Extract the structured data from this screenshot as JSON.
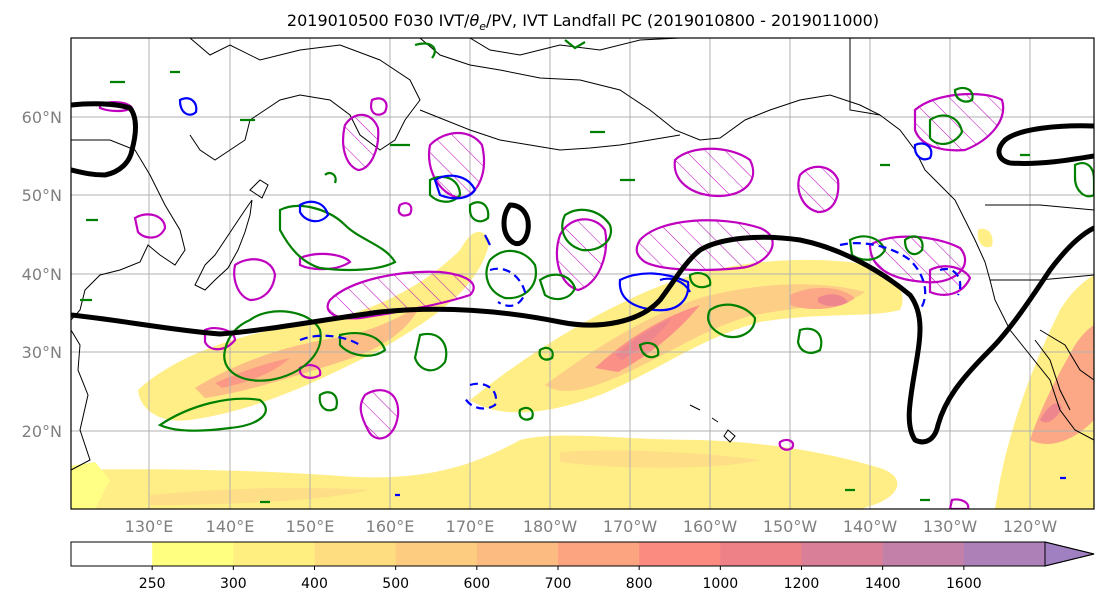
{
  "title": {
    "run": "2019010500 F030 IVT/",
    "theta": "θ",
    "theta_sub": "e",
    "rest": "/PV, IVT Landfall PC (2019010800 - 2019011000)"
  },
  "map": {
    "lat_labels": [
      "60°N",
      "50°N",
      "40°N",
      "30°N",
      "20°N"
    ],
    "lon_labels": [
      "130°E",
      "140°E",
      "150°E",
      "160°E",
      "170°E",
      "180°W",
      "170°W",
      "160°W",
      "150°W",
      "140°W",
      "130°W",
      "120°W"
    ],
    "colors": {
      "pv_contour": "#000000",
      "theta_e_positive": "#008000",
      "theta_e_negative": "#0000ff",
      "landfall_pc": "#c000c0",
      "coastline": "#000000",
      "gridline": "#b0b0b0"
    }
  },
  "colorbar": {
    "ticks": [
      "250",
      "300",
      "400",
      "500",
      "600",
      "700",
      "800",
      "1000",
      "1200",
      "1400",
      "1600"
    ],
    "colors": [
      "#ffffff",
      "#ffff80",
      "#ffee80",
      "#fedd80",
      "#fdcc80",
      "#fcbb80",
      "#fca380",
      "#fb8b80",
      "#ee8088",
      "#d98098",
      "#c380a8",
      "#ad80b8",
      "#a080c0"
    ]
  }
}
